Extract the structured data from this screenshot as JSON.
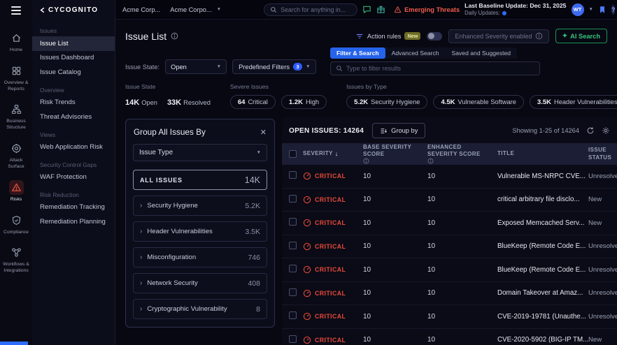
{
  "brand": {
    "logo_text": "CYCOGNITO"
  },
  "icon_rail": {
    "items": [
      {
        "label": "Home",
        "icon": "home-icon",
        "active": false
      },
      {
        "label": "Overview & Reports",
        "icon": "overview-reports-icon",
        "active": false
      },
      {
        "label": "Business Structure",
        "icon": "business-structure-icon",
        "active": false
      },
      {
        "label": "Attack Surface",
        "icon": "attack-surface-icon",
        "active": false
      },
      {
        "label": "Risks",
        "icon": "risks-icon",
        "active": true
      },
      {
        "label": "Compliance",
        "icon": "compliance-icon",
        "active": false
      },
      {
        "label": "Workflows & Integrations",
        "icon": "workflows-icon",
        "active": false
      }
    ]
  },
  "sidebar": {
    "sections": [
      {
        "header": "Issues",
        "items": [
          {
            "label": "Issue List",
            "active": true
          },
          {
            "label": "Issues Dashboard",
            "active": false
          },
          {
            "label": "Issue Catalog",
            "active": false
          }
        ]
      },
      {
        "header": "Overview",
        "items": [
          {
            "label": "Risk Trends",
            "active": false
          },
          {
            "label": "Threat Advisories",
            "active": false
          }
        ]
      },
      {
        "header": "Views",
        "items": [
          {
            "label": "Web Application Risk",
            "active": false
          }
        ]
      },
      {
        "header": "Security Control Gaps",
        "items": [
          {
            "label": "WAF Protection",
            "active": false
          }
        ]
      },
      {
        "header": "Risk Reduction",
        "items": [
          {
            "label": "Remediation Tracking",
            "active": false
          },
          {
            "label": "Remediation Planning",
            "active": false
          }
        ]
      }
    ]
  },
  "topbar": {
    "org_primary": "Acme Corp...",
    "org_secondary": "Acme Corpo...",
    "search_placeholder": "Search for anything in...",
    "emerging_threats_label": "Emerging Threats",
    "baseline_update": "Last Baseline Update: Dec 31, 2025",
    "daily_updates": "Daily Updates:",
    "avatar_initials": "WT"
  },
  "page_header": {
    "title": "Issue List",
    "action_rules_label": "Action rules",
    "action_rules_badge": "New",
    "enhanced_severity_label": "Enhanced Severity enabled",
    "ai_search_label": "AI Search"
  },
  "filters": {
    "issue_state_label": "Issue State:",
    "issue_state_value": "Open",
    "predefined_filters_label": "Predefined Filters",
    "predefined_filters_count": "3",
    "tabs": [
      {
        "label": "Filter & Search",
        "active": true
      },
      {
        "label": "Advanced Search",
        "active": false
      },
      {
        "label": "Saved and Suggested",
        "active": false
      }
    ],
    "filter_placeholder": "Type to filter results"
  },
  "stats": {
    "issue_state": {
      "label": "Issue State",
      "values": [
        {
          "num": "14K",
          "word": "Open"
        },
        {
          "num": "33K",
          "word": "Resolved"
        }
      ]
    },
    "severe_issues": {
      "label": "Severe Issues",
      "pills": [
        {
          "num": "64",
          "word": "Critical"
        },
        {
          "num": "1.2K",
          "word": "High"
        }
      ]
    },
    "issues_by_type": {
      "label": "Issues by Type",
      "pills": [
        {
          "num": "5.2K",
          "word": "Security Hygiene"
        },
        {
          "num": "4.5K",
          "word": "Vulnerable Software"
        },
        {
          "num": "3.5K",
          "word": "Header Vulnerabilities"
        },
        {
          "num": "3.3K",
          "word": "Cr"
        }
      ]
    }
  },
  "group_panel": {
    "title": "Group All Issues By",
    "select_value": "Issue Type",
    "items": [
      {
        "label": "ALL ISSUES",
        "value": "14K",
        "all": true
      },
      {
        "label": "Security Hygiene",
        "value": "5.2K",
        "all": false
      },
      {
        "label": "Header Vulnerabilities",
        "value": "3.5K",
        "all": false
      },
      {
        "label": "Misconfiguration",
        "value": "746",
        "all": false
      },
      {
        "label": "Network Security",
        "value": "408",
        "all": false
      },
      {
        "label": "Cryptographic Vulnerability",
        "value": "8",
        "all": false
      }
    ]
  },
  "table": {
    "open_issues_label": "OPEN ISSUES: 14264",
    "group_by_label": "Group by",
    "showing_label": "Showing 1-25 of 14264",
    "columns": [
      "SEVERITY",
      "BASE SEVERITY SCORE",
      "ENHANCED SEVERITY SCORE",
      "TITLE",
      "ISSUE STATUS"
    ],
    "rows": [
      {
        "severity": "CRITICAL",
        "base_score": "10",
        "enhanced_score": "10",
        "title": "Vulnerable MS-NRPC CVE...",
        "status": "Unresolved"
      },
      {
        "severity": "CRITICAL",
        "base_score": "10",
        "enhanced_score": "10",
        "title": "critical arbitrary file disclo...",
        "status": "New"
      },
      {
        "severity": "CRITICAL",
        "base_score": "10",
        "enhanced_score": "10",
        "title": "Exposed Memcached Serv...",
        "status": "New"
      },
      {
        "severity": "CRITICAL",
        "base_score": "10",
        "enhanced_score": "10",
        "title": "BlueKeep (Remote Code E...",
        "status": "Unresolved"
      },
      {
        "severity": "CRITICAL",
        "base_score": "10",
        "enhanced_score": "10",
        "title": "BlueKeep (Remote Code E...",
        "status": "Unresolved"
      },
      {
        "severity": "CRITICAL",
        "base_score": "10",
        "enhanced_score": "10",
        "title": "Domain Takeover at Amaz...",
        "status": "Unresolved"
      },
      {
        "severity": "CRITICAL",
        "base_score": "10",
        "enhanced_score": "10",
        "title": "CVE-2019-19781 (Unauthe...",
        "status": "Unresolved"
      },
      {
        "severity": "CRITICAL",
        "base_score": "10",
        "enhanced_score": "10",
        "title": "CVE-2020-5902 (BIG-IP TM...",
        "status": "New"
      }
    ]
  },
  "colors": {
    "accent_blue": "#2563eb",
    "critical_red": "#e8493a",
    "success_green": "#35c57e"
  }
}
